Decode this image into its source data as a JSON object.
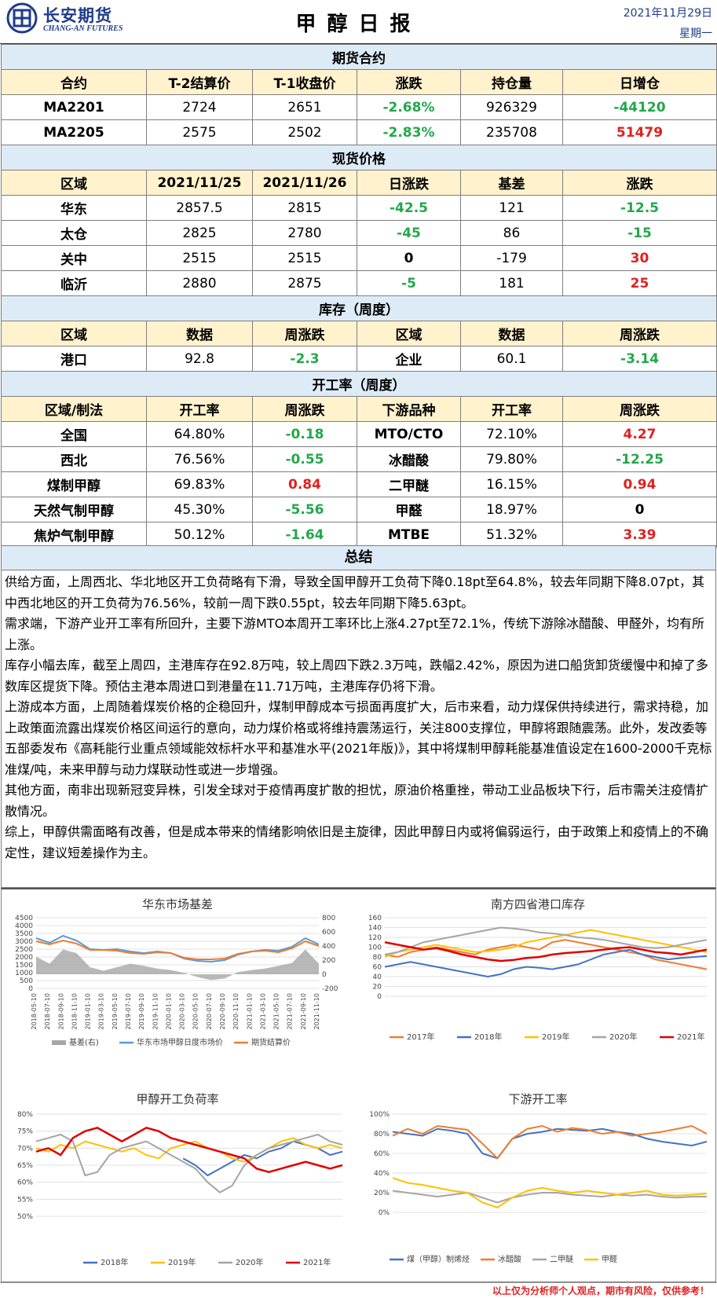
{
  "header": {
    "company_cn": "长安期货",
    "company_en": "CHANG-AN FUTURES",
    "title": "甲醇日报",
    "date": "2021年11月29日",
    "weekday": "星期一"
  },
  "futures": {
    "title": "期货合约",
    "headers": [
      "合约",
      "T-2结算价",
      "T-1收盘价",
      "涨跌",
      "持仓量",
      "日增仓"
    ],
    "rows": [
      {
        "contract": "MA2201",
        "settle": "2724",
        "close": "2651",
        "change": "-2.68%",
        "oi": "926329",
        "oi_change": "-44120"
      },
      {
        "contract": "MA2205",
        "settle": "2575",
        "close": "2502",
        "change": "-2.83%",
        "oi": "235708",
        "oi_change": "51479"
      }
    ]
  },
  "spot": {
    "title": "现货价格",
    "headers": [
      "区域",
      "2021/11/25",
      "2021/11/26",
      "日涨跌",
      "基差",
      "涨跌"
    ],
    "rows": [
      {
        "region": "华东",
        "p1": "2857.5",
        "p2": "2815",
        "chg": "-42.5",
        "basis": "121",
        "basis_chg": "-12.5"
      },
      {
        "region": "太仓",
        "p1": "2825",
        "p2": "2780",
        "chg": "-45",
        "basis": "86",
        "basis_chg": "-15"
      },
      {
        "region": "关中",
        "p1": "2515",
        "p2": "2515",
        "chg": "0",
        "basis": "-179",
        "basis_chg": "30"
      },
      {
        "region": "临沂",
        "p1": "2880",
        "p2": "2875",
        "chg": "-5",
        "basis": "181",
        "basis_chg": "25"
      }
    ]
  },
  "inventory": {
    "title": "库存（周度）",
    "headers": [
      "区域",
      "数据",
      "周涨跌",
      "区域",
      "数据",
      "周涨跌"
    ],
    "row": {
      "r1": "港口",
      "v1": "92.8",
      "c1": "-2.3",
      "r2": "企业",
      "v2": "60.1",
      "c2": "-3.14"
    }
  },
  "operating": {
    "title": "开工率（周度）",
    "headers": [
      "区域/制法",
      "开工率",
      "周涨跌",
      "下游品种",
      "开工率",
      "周涨跌"
    ],
    "rows": [
      {
        "a": "全国",
        "ar": "64.80%",
        "ac": "-0.18",
        "b": "MTO/CTO",
        "br": "72.10%",
        "bc": "4.27"
      },
      {
        "a": "西北",
        "ar": "76.56%",
        "ac": "-0.55",
        "b": "冰醋酸",
        "br": "79.80%",
        "bc": "-12.25"
      },
      {
        "a": "煤制甲醇",
        "ar": "69.83%",
        "ac": "0.84",
        "b": "二甲醚",
        "br": "16.15%",
        "bc": "0.94"
      },
      {
        "a": "天然气制甲醇",
        "ar": "45.30%",
        "ac": "-5.56",
        "b": "甲醛",
        "br": "18.97%",
        "bc": "0"
      },
      {
        "a": "焦炉气制甲醇",
        "ar": "50.12%",
        "ac": "-1.64",
        "b": "MTBE",
        "br": "51.32%",
        "bc": "3.39"
      }
    ]
  },
  "summary": {
    "title": "总结",
    "paragraphs": [
      "供给方面，上周西北、华北地区开工负荷略有下滑，导致全国甲醇开工负荷下降0.18pt至64.8%，较去年同期下降8.07pt，其中西北地区的开工负荷为76.56%，较前一周下跌0.55pt，较去年同期下降5.63pt。",
      "需求端，下游产业开工率有所回升，主要下游MTO本周开工率环比上涨4.27pt至72.1%，传统下游除冰醋酸、甲醛外，均有所上涨。",
      "库存小幅去库，截至上周四，主港库存在92.8万吨，较上周四下跌2.3万吨，跌幅2.42%，原因为进口船货卸货缓慢中和掉了多数库区提货下降。预估主港本周进口到港量在11.71万吨，主港库存仍将下滑。",
      "上游成本方面，上周随着煤炭价格的企稳回升，煤制甲醇成本亏损面再度扩大，后市来看，动力煤保供持续进行，需求持稳，加上政策面流露出煤炭价格区间运行的意向，动力煤价格或将维持震荡运行，关注800支撑位，甲醇将跟随震荡。此外，发改委等五部委发布《高耗能行业重点领域能效标杆水平和基准水平(2021年版)》，其中将煤制甲醇耗能基准值设定在1600-2000千克标准煤/吨，未来甲醇与动力煤联动性或进一步增强。",
      "其他方面，南非出现新冠变异株，引发全球对于疫情再度扩散的担忧，原油价格重挫，带动工业品板块下行，后市需关注疫情扩散情况。",
      "综上，甲醇供需面略有改善，但是成本带来的情绪影响依旧是主旋律，因此甲醇日内或将偏弱运行，由于政策上和疫情上的不确定性，建议短差操作为主。"
    ]
  },
  "chart_data": [
    {
      "type": "line",
      "title": "华东市场基差",
      "x": [
        "2018-05-10",
        "2018-07-10",
        "2018-09-10",
        "2018-11-10",
        "2019-01-10",
        "2019-03-10",
        "2019-05-10",
        "2019-07-10",
        "2019-09-10",
        "2019-11-10",
        "2020-01-10",
        "2020-03-10",
        "2020-05-10",
        "2020-07-10",
        "2020-09-10",
        "2020-11-10",
        "2021-01-10",
        "2021-03-10",
        "2021-05-10",
        "2021-07-10",
        "2021-09-10",
        "2021-11-10"
      ],
      "ylim": [
        0,
        4500
      ],
      "y2lim": [
        -200,
        800
      ],
      "yticks": [
        "0",
        "500",
        "1000",
        "1500",
        "2000",
        "2500",
        "3000",
        "3500",
        "4000",
        "4500"
      ],
      "y2ticks": [
        "-200",
        "0",
        "200",
        "400",
        "600",
        "800"
      ],
      "series": [
        {
          "name": "基差(右)",
          "color": "#a6a6a6",
          "values": [
            250,
            150,
            350,
            300,
            100,
            50,
            100,
            150,
            120,
            80,
            60,
            20,
            -40,
            -80,
            -60,
            30,
            60,
            80,
            120,
            160,
            350,
            150
          ]
        },
        {
          "name": "华东市场甲醇日度市场价",
          "color": "#5b9bd5",
          "values": [
            3200,
            2900,
            3350,
            3050,
            2500,
            2450,
            2500,
            2350,
            2250,
            2350,
            2250,
            1900,
            1750,
            1700,
            1800,
            2150,
            2350,
            2450,
            2400,
            2650,
            3200,
            2800
          ]
        },
        {
          "name": "期货结算价",
          "color": "#ed7d31",
          "values": [
            3000,
            2800,
            3050,
            2850,
            2450,
            2450,
            2400,
            2250,
            2200,
            2300,
            2250,
            1950,
            1850,
            1850,
            1900,
            2200,
            2350,
            2400,
            2300,
            2550,
            3000,
            2700
          ]
        }
      ]
    },
    {
      "type": "line",
      "title": "南方四省港口库存",
      "ylim": [
        0,
        160
      ],
      "yticks": [
        "0",
        "20",
        "40",
        "60",
        "80",
        "100",
        "120",
        "140",
        "160"
      ],
      "series": [
        {
          "name": "2017年",
          "color": "#ed7d31",
          "values": [
            85,
            80,
            90,
            95,
            100,
            95,
            90,
            85,
            95,
            100,
            105,
            100,
            95,
            110,
            115,
            110,
            105,
            100,
            95,
            90,
            85,
            75,
            70,
            65,
            60,
            55
          ]
        },
        {
          "name": "2018年",
          "color": "#4472c4",
          "values": [
            60,
            65,
            70,
            65,
            60,
            55,
            50,
            45,
            40,
            45,
            55,
            60,
            58,
            55,
            60,
            65,
            75,
            85,
            90,
            95,
            85,
            80,
            75,
            78,
            80,
            82
          ]
        },
        {
          "name": "2019年",
          "color": "#ffc000",
          "values": [
            80,
            90,
            95,
            100,
            105,
            100,
            95,
            90,
            92,
            95,
            100,
            110,
            115,
            120,
            125,
            130,
            135,
            130,
            125,
            120,
            115,
            110,
            105,
            100,
            95,
            90
          ]
        },
        {
          "name": "2020年",
          "color": "#a5a5a5",
          "values": [
            85,
            90,
            100,
            110,
            115,
            120,
            125,
            130,
            135,
            140,
            138,
            135,
            130,
            128,
            125,
            120,
            118,
            115,
            110,
            105,
            100,
            98,
            100,
            105,
            110,
            115
          ]
        },
        {
          "name": "2021年",
          "color": "#e00000",
          "values": [
            110,
            105,
            100,
            95,
            98,
            92,
            85,
            80,
            75,
            72,
            74,
            78,
            80,
            85,
            88,
            90,
            92,
            95,
            98,
            100,
            95,
            90,
            88,
            85,
            90,
            95
          ]
        }
      ]
    },
    {
      "type": "line",
      "title": "甲醇开工负荷率",
      "ylim": [
        50,
        80
      ],
      "yticks": [
        "50%",
        "55%",
        "60%",
        "65%",
        "70%",
        "75%",
        "80%"
      ],
      "series": [
        {
          "name": "2018年",
          "color": "#4472c4",
          "values": [
            null,
            null,
            null,
            null,
            null,
            null,
            null,
            null,
            null,
            null,
            null,
            null,
            67,
            65,
            62,
            64,
            66,
            68,
            67,
            69,
            70,
            72,
            71,
            70,
            68,
            69
          ]
        },
        {
          "name": "2019年",
          "color": "#ffc000",
          "values": [
            70,
            69,
            71,
            70,
            72,
            71,
            70,
            69,
            70,
            68,
            67,
            70,
            71,
            72,
            70,
            69,
            67,
            66,
            68,
            70,
            72,
            73,
            71,
            70,
            71,
            70
          ]
        },
        {
          "name": "2020年",
          "color": "#a5a5a5",
          "values": [
            72,
            73,
            74,
            72,
            62,
            63,
            68,
            70,
            71,
            72,
            70,
            68,
            66,
            64,
            60,
            57,
            59,
            65,
            68,
            70,
            71,
            72,
            73,
            74,
            72,
            71
          ]
        },
        {
          "name": "2021年",
          "color": "#e00000",
          "values": [
            69,
            70,
            68,
            73,
            75,
            76,
            74,
            72,
            74,
            76,
            75,
            73,
            72,
            71,
            70,
            69,
            68,
            67,
            64,
            63,
            64,
            65,
            66,
            65,
            64,
            65
          ]
        }
      ]
    },
    {
      "type": "line",
      "title": "下游开工率",
      "ylim": [
        0,
        100
      ],
      "yticks": [
        "0%",
        "20%",
        "40%",
        "60%",
        "80%",
        "100%"
      ],
      "series": [
        {
          "name": "煤（甲醇）制烯烃",
          "color": "#4472c4",
          "values": [
            82,
            80,
            78,
            85,
            83,
            80,
            60,
            55,
            75,
            80,
            82,
            85,
            84,
            83,
            85,
            82,
            80,
            75,
            72,
            70,
            68,
            72
          ]
        },
        {
          "name": "冰醋酸",
          "color": "#ed7d31",
          "values": [
            78,
            85,
            80,
            88,
            86,
            84,
            70,
            55,
            75,
            85,
            88,
            82,
            86,
            84,
            80,
            82,
            78,
            80,
            82,
            85,
            88,
            80
          ]
        },
        {
          "name": "二甲醚",
          "color": "#a5a5a5",
          "values": [
            22,
            20,
            18,
            16,
            18,
            20,
            15,
            10,
            15,
            18,
            20,
            20,
            18,
            17,
            16,
            18,
            17,
            18,
            16,
            15,
            16,
            16
          ]
        },
        {
          "name": "甲醛",
          "color": "#ffc000",
          "values": [
            35,
            30,
            28,
            25,
            22,
            20,
            10,
            5,
            15,
            22,
            25,
            22,
            20,
            22,
            20,
            18,
            20,
            22,
            18,
            17,
            18,
            19
          ]
        }
      ]
    }
  ],
  "footer": {
    "disclaimer": "以上仅为分析师个人观点，期市有风险，仅供参考！"
  }
}
